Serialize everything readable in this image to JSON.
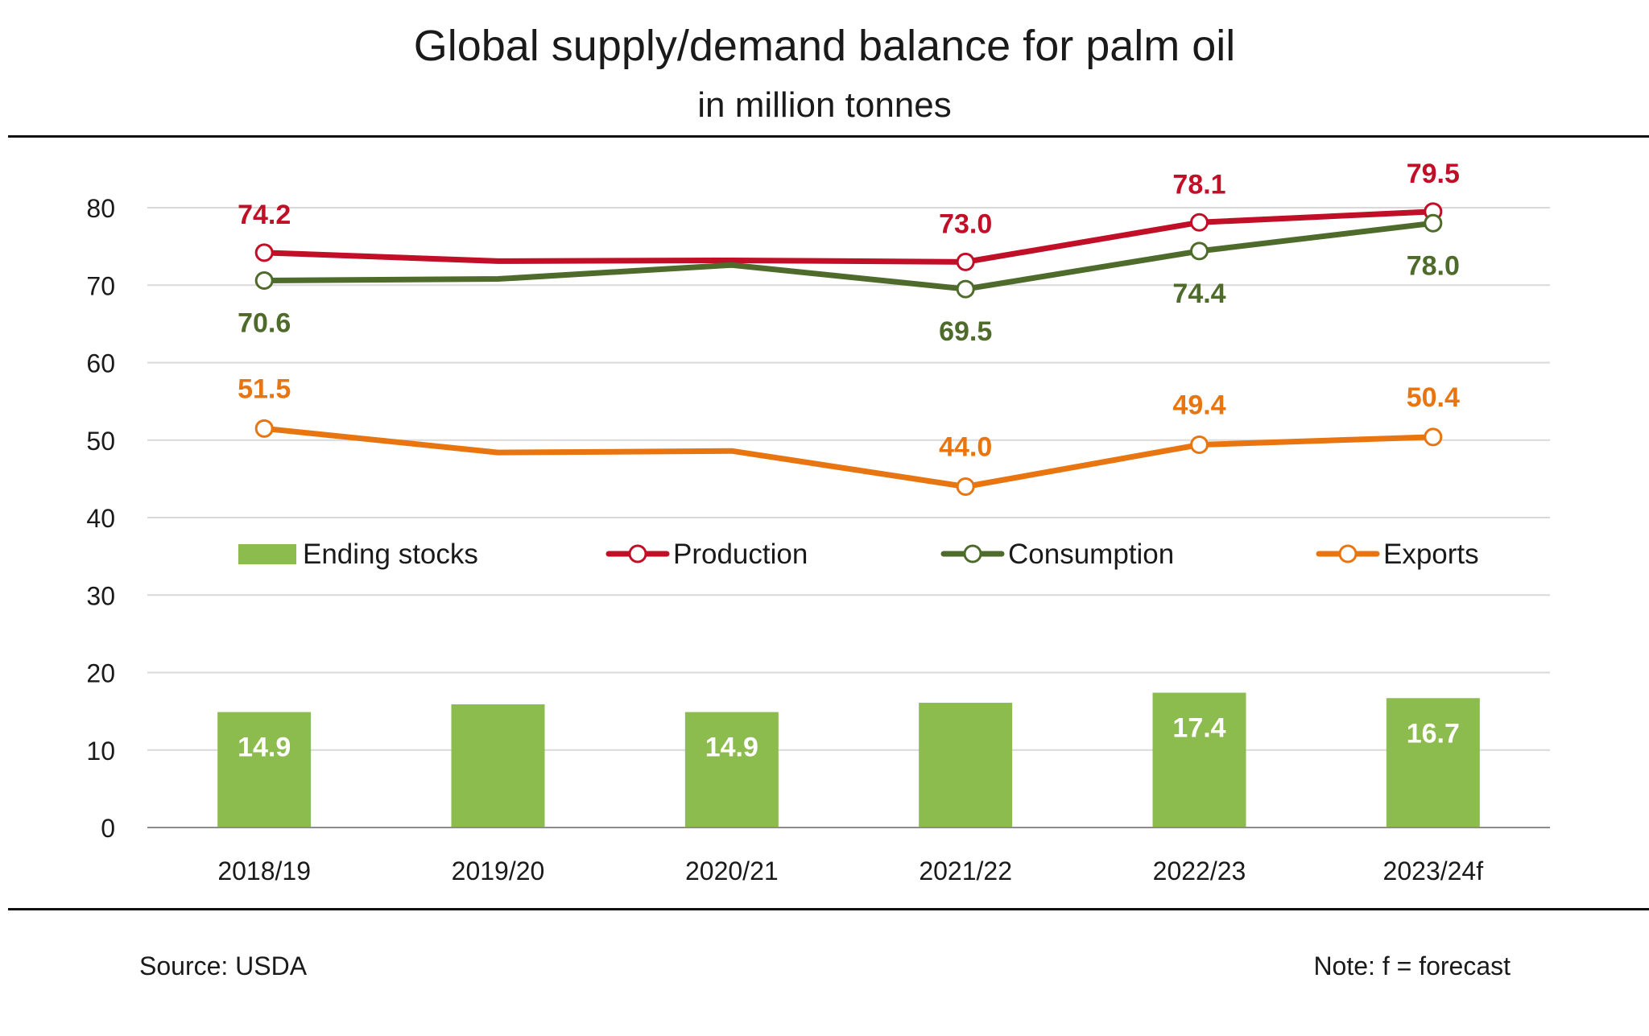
{
  "chart_data": {
    "type": "bar+line",
    "title": "Global supply/demand balance for palm oil",
    "subtitle": "in million tonnes",
    "categories": [
      "2018/19",
      "2019/20",
      "2020/21",
      "2021/22",
      "2022/23",
      "2023/24f"
    ],
    "ylim": [
      0,
      80
    ],
    "yticks": [
      0,
      10,
      20,
      30,
      40,
      50,
      60,
      70,
      80
    ],
    "grid": true,
    "legend_position": "middle",
    "series": [
      {
        "name": "Ending stocks",
        "kind": "bar",
        "color": "#8cbb4e",
        "values": [
          14.9,
          15.9,
          14.9,
          16.1,
          17.4,
          16.7
        ],
        "labels": [
          "14.9",
          "",
          "14.9",
          "",
          "17.4",
          "16.7"
        ]
      },
      {
        "name": "Production",
        "kind": "line",
        "color": "#c00f26",
        "values": [
          74.2,
          73.1,
          73.2,
          73.0,
          78.1,
          79.5
        ],
        "markers": [
          true,
          false,
          false,
          true,
          true,
          true
        ],
        "labels": [
          "74.2",
          "",
          "",
          "73.0",
          "78.1",
          "79.5"
        ]
      },
      {
        "name": "Consumption",
        "kind": "line",
        "color": "#4e6b2b",
        "values": [
          70.6,
          70.8,
          72.6,
          69.5,
          74.4,
          78.0
        ],
        "markers": [
          true,
          false,
          false,
          true,
          true,
          true
        ],
        "labels": [
          "70.6",
          "",
          "",
          "69.5",
          "74.4",
          "78.0"
        ]
      },
      {
        "name": "Exports",
        "kind": "line",
        "color": "#e8750f",
        "values": [
          51.5,
          48.4,
          48.6,
          44.0,
          49.4,
          50.4
        ],
        "markers": [
          true,
          false,
          false,
          true,
          true,
          true
        ],
        "labels": [
          "51.5",
          "",
          "",
          "44.0",
          "49.4",
          "50.4"
        ]
      }
    ]
  },
  "footer": {
    "source": "Source: USDA",
    "note": "Note: f = forecast"
  }
}
